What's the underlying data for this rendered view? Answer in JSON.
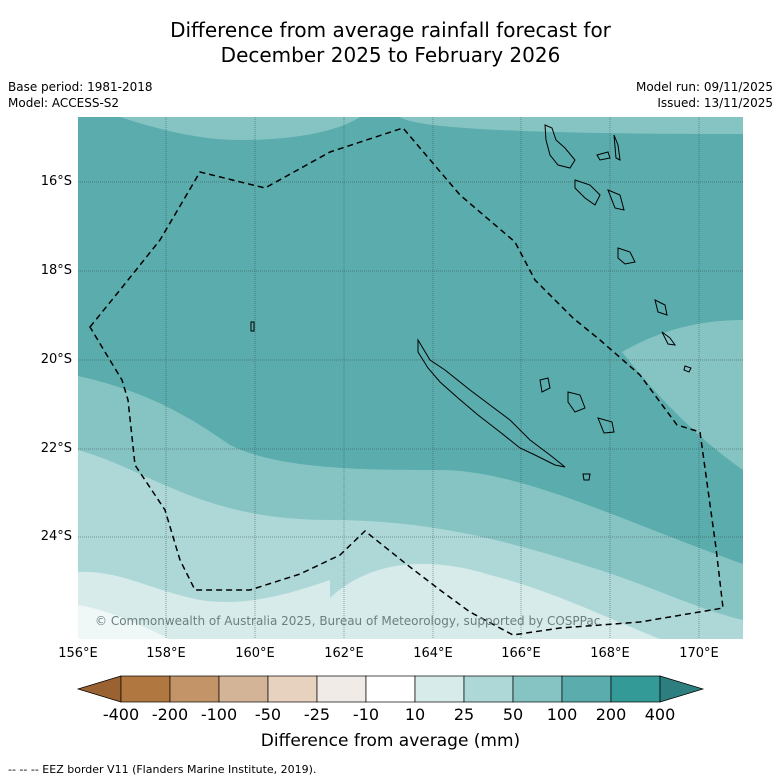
{
  "title_line1": "Difference from average rainfall forecast for",
  "title_line2": "December 2025 to February 2026",
  "meta_left": {
    "base_period": "Base period: 1981-2018",
    "model": "Model: ACCESS-S2"
  },
  "meta_right": {
    "model_run": "Model run: 09/11/2025",
    "issued": "Issued: 13/11/2025"
  },
  "map": {
    "lat_labels": [
      "16°S",
      "18°S",
      "20°S",
      "22°S",
      "24°S"
    ],
    "lon_labels": [
      "156°E",
      "158°E",
      "160°E",
      "162°E",
      "164°E",
      "166°E",
      "168°E",
      "170°E"
    ],
    "credit": "© Commonwealth of Australia 2025, Bureau of Meteorology, supported by COSPPac",
    "eez_line_color": "#000000"
  },
  "colorbar": {
    "labels": [
      "-400",
      "-200",
      "-100",
      "-50",
      "-25",
      "-10",
      "10",
      "25",
      "50",
      "100",
      "200",
      "400"
    ],
    "colors": [
      "#b07840",
      "#c29468",
      "#d3b496",
      "#e6d2bf",
      "#f0ebe7",
      "#ffffff",
      "#d6ebea",
      "#aed8d8",
      "#86c4c3",
      "#5aacad",
      "#339a98"
    ],
    "extend_low_color": "#9a6230",
    "extend_high_color": "#2d7f7f",
    "title": "Difference from average (mm)"
  },
  "footnote": "--  --  -- EEZ border V11 (Flanders Marine Institute, 2019)."
}
